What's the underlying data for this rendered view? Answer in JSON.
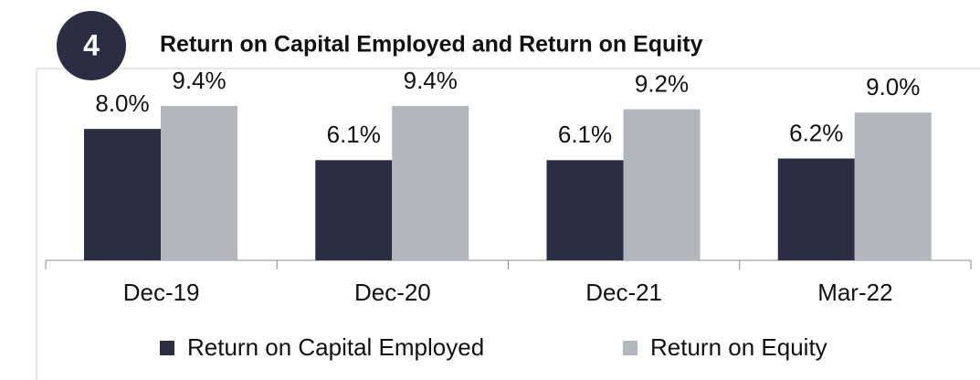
{
  "badge": "4",
  "chart_data": {
    "type": "bar",
    "title": "Return on Capital Employed and Return on Equity",
    "categories": [
      "Dec-19",
      "Dec-20",
      "Dec-21",
      "Mar-22"
    ],
    "series": [
      {
        "name": "Return on Capital Employed",
        "color": "#2b2e43",
        "values": [
          8.0,
          6.1,
          6.1,
          6.2
        ],
        "value_labels": [
          "8.0%",
          "6.1%",
          "6.1%",
          "6.2%"
        ]
      },
      {
        "name": "Return on Equity",
        "color": "#b4b6be",
        "values": [
          9.4,
          9.4,
          9.2,
          9.0
        ],
        "value_labels": [
          "9.4%",
          "9.4%",
          "9.2%",
          "9.0%"
        ]
      }
    ],
    "legend": "bottom"
  }
}
